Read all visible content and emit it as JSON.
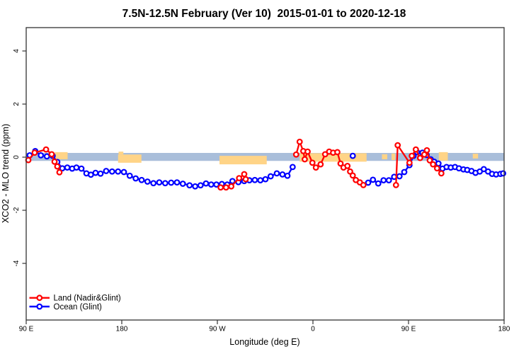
{
  "title": "7.5N-12.5N February (Ver 10)  2015-01-01 to 2020-12-18",
  "x_axis": {
    "label": "Longitude (deg E)",
    "ticks": [
      {
        "lon": 90,
        "label": "90 E"
      },
      {
        "lon": 180,
        "label": "180"
      },
      {
        "lon": 270,
        "label": "90 W"
      },
      {
        "lon": 360,
        "label": "0"
      },
      {
        "lon": 450,
        "label": "90 E"
      },
      {
        "lon": 540,
        "label": "180"
      }
    ]
  },
  "y_axis": {
    "label": "XCO2 - MLO trend (ppm)",
    "ticks": [
      {
        "value": -4,
        "label": "-4"
      },
      {
        "value": -2,
        "label": "-2"
      },
      {
        "value": 0,
        "label": "0"
      },
      {
        "value": 2,
        "label": "2"
      },
      {
        "value": 4,
        "label": "4"
      }
    ]
  },
  "legend": {
    "items": [
      {
        "label": "Land (Nadir&Glint)",
        "color": "#ff0000"
      },
      {
        "label": "Ocean (Glint)",
        "color": "#0000ff"
      }
    ]
  },
  "colors": {
    "reference_band": "#a9beda",
    "land_shading": "#ffd487",
    "land_series": "#ff0000",
    "ocean_series": "#0000ff",
    "axis": "#333333"
  },
  "chart_data": {
    "type": "line",
    "title": "7.5N-12.5N February (Ver 10)  2015-01-01 to 2020-12-18",
    "xlabel": "Longitude (deg E)",
    "ylabel": "XCO2 - MLO trend (ppm)",
    "xlim": [
      90,
      540
    ],
    "ylim": [
      -6.1,
      4.9
    ],
    "x_tick_lons": [
      90,
      180,
      270,
      360,
      450,
      540
    ],
    "y_tick_values": [
      -4,
      -2,
      0,
      2,
      4
    ],
    "grid": false,
    "legend_position": "bottom-left-inside",
    "marker": "open-circle",
    "reference_band": {
      "v_top": 0.16,
      "v_bottom": -0.14
    },
    "land_shading": [
      {
        "x1": 117.1,
        "x2": 129.0,
        "v1": 0.19,
        "v2": -0.08
      },
      {
        "x1": 176.5,
        "x2": 198.5,
        "v1": 0.1,
        "v2": -0.21
      },
      {
        "x1": 177.0,
        "x2": 181.5,
        "v1": 0.21,
        "v2": 0.1
      },
      {
        "x1": 272.0,
        "x2": 316.5,
        "v1": 0.05,
        "v2": -0.27
      },
      {
        "x1": 347.5,
        "x2": 410.5,
        "v1": 0.15,
        "v2": -0.17
      },
      {
        "x1": 425.0,
        "x2": 430.0,
        "v1": 0.11,
        "v2": -0.08
      },
      {
        "x1": 434.0,
        "x2": 437.5,
        "v1": 0.14,
        "v2": -0.11
      },
      {
        "x1": 478.5,
        "x2": 487.0,
        "v1": 0.19,
        "v2": -0.13
      },
      {
        "x1": 510.5,
        "x2": 515.5,
        "v1": 0.13,
        "v2": -0.05
      }
    ],
    "series": [
      {
        "id": "ocean",
        "name": "Ocean (Glint)",
        "color": "#0000ff",
        "segments": [
          [
            [
              93.3,
              0.07
            ],
            [
              98.5,
              0.23
            ],
            [
              103.8,
              0.07
            ],
            [
              109.5,
              0.03
            ],
            [
              114.9,
              0.05
            ],
            [
              119.3,
              -0.18
            ],
            [
              124.0,
              -0.42
            ],
            [
              128.7,
              -0.39
            ],
            [
              133.3,
              -0.43
            ],
            [
              137.3,
              -0.39
            ],
            [
              142.0,
              -0.43
            ],
            [
              146.7,
              -0.61
            ],
            [
              150.9,
              -0.66
            ],
            [
              155.3,
              -0.59
            ],
            [
              160.0,
              -0.62
            ],
            [
              165.3,
              -0.52
            ],
            [
              170.9,
              -0.54
            ],
            [
              176.5,
              -0.54
            ],
            [
              182.0,
              -0.56
            ],
            [
              187.5,
              -0.7
            ],
            [
              193.1,
              -0.8
            ],
            [
              198.7,
              -0.86
            ],
            [
              204.2,
              -0.92
            ],
            [
              209.8,
              -0.98
            ],
            [
              215.3,
              -0.95
            ],
            [
              220.9,
              -0.98
            ],
            [
              226.5,
              -0.96
            ],
            [
              232.0,
              -0.95
            ],
            [
              237.5,
              -1.0
            ],
            [
              243.8,
              -1.06
            ],
            [
              249.1,
              -1.1
            ],
            [
              254.2,
              -1.06
            ],
            [
              259.3,
              -0.99
            ],
            [
              264.2,
              -1.03
            ],
            [
              269.1,
              -1.03
            ],
            [
              274.2,
              -1.01
            ],
            [
              279.3,
              -1.03
            ],
            [
              284.2,
              -0.9
            ],
            [
              289.8,
              -0.94
            ],
            [
              295.3,
              -0.9
            ],
            [
              300.2,
              -0.87
            ],
            [
              305.3,
              -0.86
            ],
            [
              310.5,
              -0.87
            ],
            [
              315.3,
              -0.83
            ],
            [
              320.2,
              -0.72
            ],
            [
              326.0,
              -0.61
            ],
            [
              331.3,
              -0.65
            ],
            [
              336.0,
              -0.7
            ],
            [
              340.9,
              -0.37
            ]
          ],
          [
            [
              397.5,
              0.05
            ]
          ],
          [
            [
              412.0,
              -0.96
            ],
            [
              416.5,
              -0.85
            ],
            [
              421.5,
              -0.99
            ],
            [
              426.5,
              -0.87
            ],
            [
              431.5,
              -0.87
            ],
            [
              436.5,
              -0.74
            ],
            [
              441.5,
              -0.72
            ],
            [
              446.0,
              -0.56
            ],
            [
              450.9,
              -0.3
            ],
            [
              454.7,
              0.05
            ],
            [
              458.0,
              0.19
            ],
            [
              463.1,
              0.17
            ],
            [
              467.1,
              0.08
            ],
            [
              470.9,
              -0.08
            ],
            [
              474.2,
              -0.17
            ],
            [
              478.2,
              -0.24
            ],
            [
              482.0,
              -0.43
            ],
            [
              485.8,
              -0.37
            ],
            [
              489.8,
              -0.39
            ],
            [
              493.8,
              -0.37
            ],
            [
              497.5,
              -0.42
            ],
            [
              501.7,
              -0.46
            ],
            [
              505.3,
              -0.48
            ],
            [
              509.3,
              -0.52
            ],
            [
              513.1,
              -0.59
            ],
            [
              517.1,
              -0.54
            ],
            [
              520.9,
              -0.45
            ],
            [
              524.9,
              -0.54
            ],
            [
              528.7,
              -0.63
            ],
            [
              532.5,
              -0.65
            ],
            [
              536.5,
              -0.63
            ],
            [
              539.1,
              -0.61
            ]
          ]
        ]
      },
      {
        "id": "land",
        "name": "Land (Nadir&Glint)",
        "color": "#ff0000",
        "segments": [
          [
            [
              92.0,
              -0.11
            ],
            [
              98.0,
              0.17
            ],
            [
              108.7,
              0.29
            ],
            [
              114.0,
              0.11
            ],
            [
              116.7,
              -0.17
            ],
            [
              119.3,
              -0.35
            ],
            [
              121.3,
              -0.57
            ]
          ],
          [
            [
              273.1,
              -1.14
            ],
            [
              278.2,
              -1.14
            ],
            [
              283.1,
              -1.1
            ],
            [
              290.5,
              -0.79
            ],
            [
              295.3,
              -0.64
            ],
            [
              296.7,
              -0.83
            ]
          ],
          [
            [
              344.2,
              0.1
            ],
            [
              347.5,
              0.58
            ],
            [
              350.9,
              0.23
            ],
            [
              352.3,
              -0.08
            ],
            [
              355.0,
              0.21
            ],
            [
              359.5,
              -0.21
            ],
            [
              362.8,
              -0.39
            ],
            [
              367.2,
              -0.27
            ],
            [
              371.5,
              0.11
            ],
            [
              375.3,
              0.21
            ],
            [
              379.0,
              0.17
            ],
            [
              383.0,
              0.19
            ],
            [
              386.0,
              -0.24
            ],
            [
              388.8,
              -0.39
            ],
            [
              392.5,
              -0.33
            ],
            [
              395.0,
              -0.54
            ],
            [
              397.5,
              -0.69
            ],
            [
              400.4,
              -0.86
            ],
            [
              404.2,
              -0.95
            ],
            [
              407.5,
              -1.05
            ]
          ],
          [
            [
              438.2,
              -1.05
            ],
            [
              439.8,
              0.45
            ],
            [
              450.9,
              -0.21
            ],
            [
              453.1,
              0.05
            ],
            [
              456.9,
              0.29
            ],
            [
              460.9,
              -0.03
            ],
            [
              464.9,
              0.1
            ],
            [
              467.3,
              0.26
            ],
            [
              470.0,
              -0.12
            ],
            [
              473.1,
              -0.27
            ],
            [
              476.9,
              -0.42
            ],
            [
              480.9,
              -0.61
            ]
          ]
        ]
      }
    ]
  }
}
